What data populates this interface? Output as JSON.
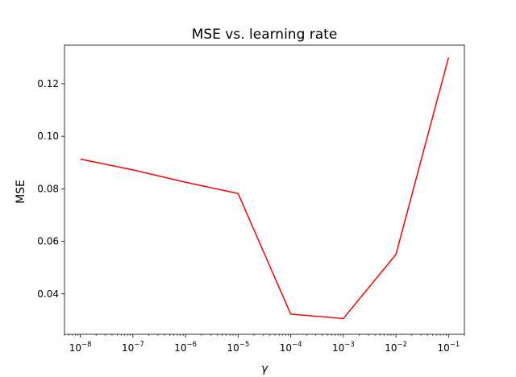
{
  "chart_data": {
    "type": "line",
    "title": "MSE vs. learning rate",
    "xlabel": "γ",
    "ylabel": "MSE",
    "xscale": "log",
    "xlim": [
      5e-09,
      0.2
    ],
    "ylim": [
      0.0246,
      0.1347
    ],
    "grid": false,
    "legend": "none",
    "x_ticks": [
      {
        "base": "10",
        "exp": "−8",
        "value": 1e-08
      },
      {
        "base": "10",
        "exp": "−7",
        "value": 1e-07
      },
      {
        "base": "10",
        "exp": "−6",
        "value": 1e-06
      },
      {
        "base": "10",
        "exp": "−5",
        "value": 1e-05
      },
      {
        "base": "10",
        "exp": "−4",
        "value": 0.0001
      },
      {
        "base": "10",
        "exp": "−3",
        "value": 0.001
      },
      {
        "base": "10",
        "exp": "−2",
        "value": 0.01
      },
      {
        "base": "10",
        "exp": "−1",
        "value": 0.1
      }
    ],
    "y_ticks": [
      "0.04",
      "0.06",
      "0.08",
      "0.10",
      "0.12"
    ],
    "series": [
      {
        "color": "#ff0000",
        "x": [
          1e-08,
          1e-07,
          1e-06,
          1e-05,
          0.0001,
          0.001,
          0.01,
          0.1
        ],
        "y": [
          0.0913,
          0.0872,
          0.0825,
          0.0782,
          0.0323,
          0.0306,
          0.055,
          0.13
        ]
      }
    ]
  }
}
